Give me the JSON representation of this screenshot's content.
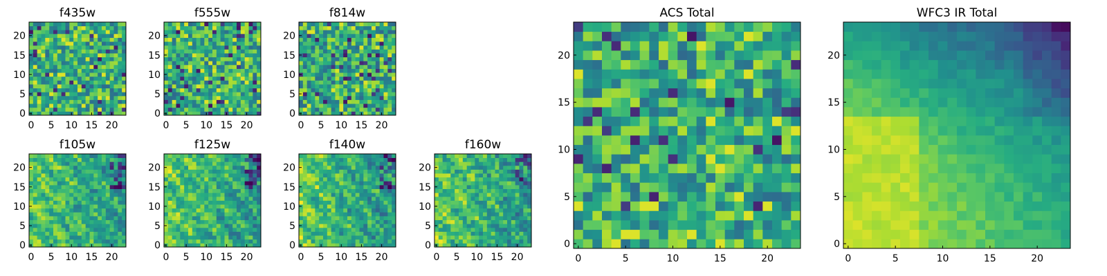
{
  "chart_data": [
    {
      "type": "heatmap",
      "title": "f435w",
      "colormap": "viridis",
      "grid_size": [
        24,
        24
      ],
      "xlim": [
        0,
        24
      ],
      "ylim": [
        0,
        24
      ],
      "xticks": [
        0,
        5,
        10,
        15,
        20
      ],
      "yticks": [
        0,
        5,
        10,
        15,
        20
      ],
      "pattern": "noise",
      "seed": 435
    },
    {
      "type": "heatmap",
      "title": "f555w",
      "colormap": "viridis",
      "grid_size": [
        24,
        24
      ],
      "xlim": [
        0,
        24
      ],
      "ylim": [
        0,
        24
      ],
      "xticks": [
        0,
        5,
        10,
        15,
        20
      ],
      "yticks": [
        0,
        5,
        10,
        15,
        20
      ],
      "pattern": "noise",
      "seed": 555
    },
    {
      "type": "heatmap",
      "title": "f814w",
      "colormap": "viridis",
      "grid_size": [
        24,
        24
      ],
      "xlim": [
        0,
        24
      ],
      "ylim": [
        0,
        24
      ],
      "xticks": [
        0,
        5,
        10,
        15,
        20
      ],
      "yticks": [
        0,
        5,
        10,
        15,
        20
      ],
      "pattern": "noise",
      "seed": 814
    },
    {
      "type": "heatmap",
      "title": "f105w",
      "colormap": "viridis",
      "grid_size": [
        24,
        24
      ],
      "xlim": [
        0,
        24
      ],
      "ylim": [
        0,
        24
      ],
      "xticks": [
        0,
        5,
        10,
        15,
        20
      ],
      "yticks": [
        0,
        5,
        10,
        15,
        20
      ],
      "pattern": "smooth",
      "seed": 105
    },
    {
      "type": "heatmap",
      "title": "f125w",
      "colormap": "viridis",
      "grid_size": [
        24,
        24
      ],
      "xlim": [
        0,
        24
      ],
      "ylim": [
        0,
        24
      ],
      "xticks": [
        0,
        5,
        10,
        15,
        20
      ],
      "yticks": [
        0,
        5,
        10,
        15,
        20
      ],
      "pattern": "smooth",
      "seed": 125
    },
    {
      "type": "heatmap",
      "title": "f140w",
      "colormap": "viridis",
      "grid_size": [
        24,
        24
      ],
      "xlim": [
        0,
        24
      ],
      "ylim": [
        0,
        24
      ],
      "xticks": [
        0,
        5,
        10,
        15,
        20
      ],
      "yticks": [
        0,
        5,
        10,
        15,
        20
      ],
      "pattern": "smooth",
      "seed": 140
    },
    {
      "type": "heatmap",
      "title": "f160w",
      "colormap": "viridis",
      "grid_size": [
        24,
        24
      ],
      "xlim": [
        0,
        24
      ],
      "ylim": [
        0,
        24
      ],
      "xticks": [
        0,
        5,
        10,
        15,
        20
      ],
      "yticks": [
        0,
        5,
        10,
        15,
        20
      ],
      "pattern": "smooth",
      "seed": 160
    },
    {
      "type": "heatmap",
      "title": "ACS Total",
      "colormap": "viridis",
      "grid_size": [
        24,
        24
      ],
      "xlim": [
        0,
        24
      ],
      "ylim": [
        0,
        24
      ],
      "xticks": [
        0,
        5,
        10,
        15,
        20
      ],
      "yticks": [
        0,
        5,
        10,
        15,
        20
      ],
      "pattern": "noise",
      "seed": 999
    },
    {
      "type": "heatmap",
      "title": "WFC3 IR Total",
      "colormap": "viridis",
      "grid_size": [
        24,
        24
      ],
      "xlim": [
        0,
        24
      ],
      "ylim": [
        0,
        24
      ],
      "xticks": [
        0,
        5,
        10,
        15,
        20
      ],
      "yticks": [
        0,
        5,
        10,
        15,
        20
      ],
      "pattern": "gradient",
      "seed": 777
    }
  ],
  "colors": {
    "viridis": [
      "#440154",
      "#472c7a",
      "#3b518b",
      "#2c718e",
      "#21908d",
      "#27ad81",
      "#5cc863",
      "#aadc32",
      "#fde725"
    ]
  }
}
